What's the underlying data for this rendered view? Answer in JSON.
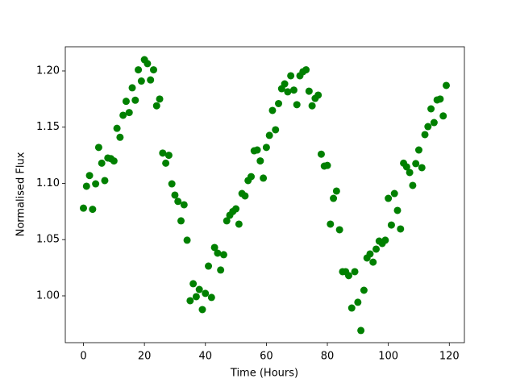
{
  "chart_data": {
    "type": "scatter",
    "xlabel": "Time (Hours)",
    "ylabel": "Normalised Flux",
    "color": "#008000",
    "x": [
      0,
      1,
      2,
      3,
      4,
      5,
      6,
      7,
      8,
      9,
      10,
      11,
      12,
      13,
      14,
      15,
      16,
      17,
      18,
      19,
      20,
      21,
      22,
      23,
      24,
      25,
      26,
      27,
      28,
      29,
      30,
      31,
      32,
      33,
      34,
      35,
      36,
      37,
      38,
      39,
      40,
      41,
      42,
      43,
      44,
      45,
      46,
      47,
      48,
      49,
      50,
      51,
      52,
      53,
      54,
      55,
      56,
      57,
      58,
      59,
      60,
      61,
      62,
      63,
      64,
      65,
      66,
      67,
      68,
      69,
      70,
      71,
      72,
      73,
      74,
      75,
      76,
      77,
      78,
      79,
      80,
      81,
      82,
      83,
      84,
      85,
      86,
      87,
      88,
      89,
      90,
      91,
      92,
      93,
      94,
      95,
      96,
      97,
      98,
      99,
      100,
      101,
      102,
      103,
      104,
      105,
      106,
      107,
      108,
      109,
      110,
      111,
      112,
      113,
      114,
      115,
      116,
      117,
      118,
      119
    ],
    "values": [
      1.078,
      1.0975,
      1.107,
      1.077,
      1.0996,
      1.132,
      1.118,
      1.1025,
      1.1226,
      1.122,
      1.12,
      1.149,
      1.141,
      1.1606,
      1.173,
      1.163,
      1.185,
      1.174,
      1.201,
      1.191,
      1.21,
      1.2065,
      1.192,
      1.201,
      1.169,
      1.175,
      1.127,
      1.118,
      1.125,
      1.0996,
      1.0896,
      1.084,
      1.0667,
      1.081,
      1.0495,
      0.9957,
      1.0108,
      0.9993,
      1.0057,
      0.9878,
      1.0022,
      1.0265,
      0.9986,
      1.043,
      1.038,
      1.023,
      1.0366,
      1.0667,
      1.0717,
      1.075,
      1.0774,
      1.0638,
      1.091,
      1.0889,
      1.1025,
      1.106,
      1.129,
      1.1297,
      1.12,
      1.1047,
      1.132,
      1.1427,
      1.1649,
      1.1477,
      1.171,
      1.1842,
      1.1885,
      1.1814,
      1.1957,
      1.183,
      1.17,
      1.1957,
      1.1993,
      1.201,
      1.182,
      1.169,
      1.1756,
      1.1785,
      1.126,
      1.1154,
      1.116,
      1.0638,
      1.0867,
      1.0932,
      1.0588,
      1.0215,
      1.0215,
      1.018,
      0.9892,
      1.0215,
      0.9943,
      0.9692,
      1.005,
      1.0337,
      1.0373,
      1.03,
      1.0416,
      1.0487,
      1.0466,
      1.0495,
      1.0867,
      1.063,
      1.091,
      1.076,
      1.0595,
      1.118,
      1.1147,
      1.1097,
      1.0982,
      1.1176,
      1.1297,
      1.114,
      1.1434,
      1.1505,
      1.1663,
      1.1541,
      1.1742,
      1.175,
      1.16,
      1.1871
    ],
    "xlim": [
      -5.95,
      124.95
    ],
    "xticks": [
      0,
      20,
      40,
      60,
      80,
      100,
      120
    ],
    "ylim": [
      0.9584,
      1.2215
    ],
    "yticks": [
      {
        "value": 1,
        "label": "1.00"
      },
      1.05,
      {
        "value": 1.1,
        "label": "1.10"
      },
      1.15,
      {
        "value": 1.2,
        "label": "1.20"
      }
    ]
  }
}
